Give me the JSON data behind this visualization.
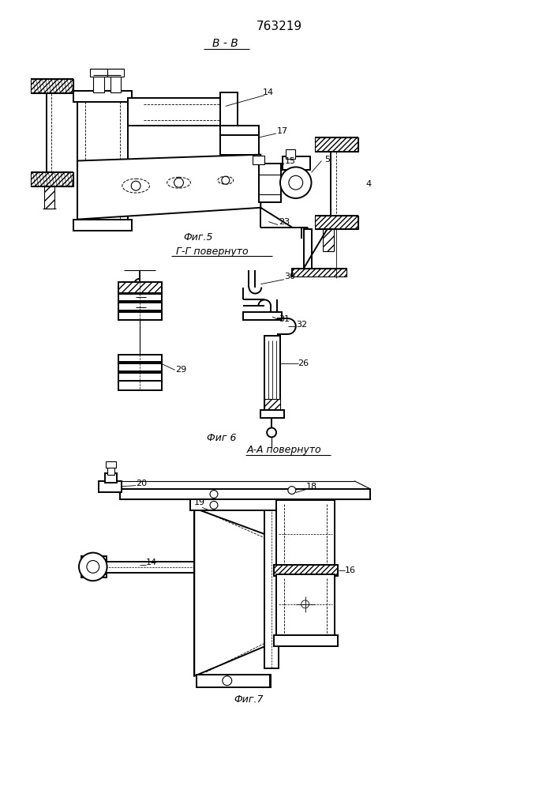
{
  "title": "763219",
  "bg_color": "#ffffff",
  "line_color": "#000000",
  "fig5_label": "Фиг.5",
  "fig6_label": "Фиг 6",
  "fig7_label": "Фиг.7",
  "section_bb": "В - В",
  "section_gg": "Г-Г повернуто",
  "section_aa": "А-А повернуто"
}
